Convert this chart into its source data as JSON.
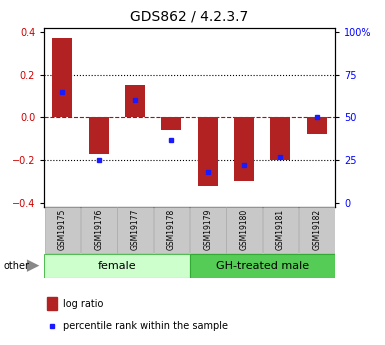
{
  "title": "GDS862 / 4.2.3.7",
  "samples": [
    "GSM19175",
    "GSM19176",
    "GSM19177",
    "GSM19178",
    "GSM19179",
    "GSM19180",
    "GSM19181",
    "GSM19182"
  ],
  "log_ratios": [
    0.37,
    -0.17,
    0.15,
    -0.06,
    -0.32,
    -0.3,
    -0.2,
    -0.08
  ],
  "percentile_ranks": [
    0.65,
    0.25,
    0.6,
    0.37,
    0.18,
    0.22,
    0.27,
    0.5
  ],
  "bar_color": "#b22222",
  "dot_color": "#1a1aff",
  "ylim": [
    -0.42,
    0.42
  ],
  "yticks_left": [
    -0.4,
    -0.2,
    0.0,
    0.2,
    0.4
  ],
  "yticks_right": [
    0,
    25,
    50,
    75,
    100
  ],
  "hline_color_zero": "#cc0000",
  "background_color": "#ffffff",
  "title_text": "GDS862 / 4.2.3.7",
  "female_color_light": "#ccffcc",
  "female_color_dark": "#55cc55",
  "gh_color": "#44cc44",
  "legend_log_ratio": "log ratio",
  "legend_percentile": "percentile rank within the sample",
  "other_label": "other"
}
